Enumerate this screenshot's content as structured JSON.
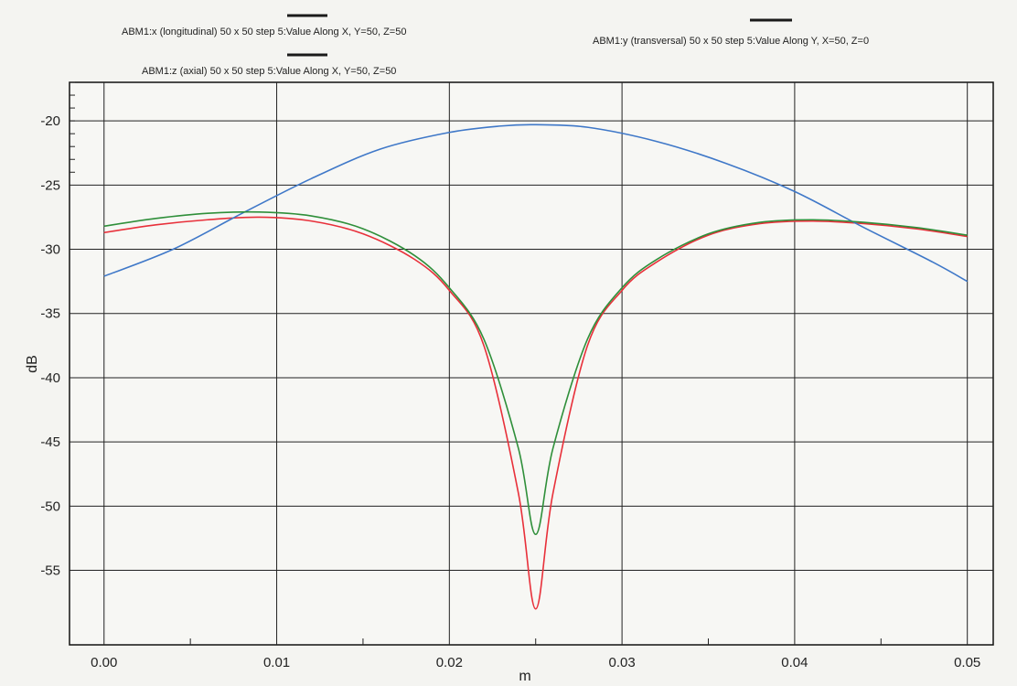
{
  "chart_data": {
    "type": "line",
    "xlabel": "m",
    "ylabel": "dB",
    "xlim": [
      -0.002,
      0.0515
    ],
    "ylim": [
      -60.8,
      -17
    ],
    "x_ticks": [
      0,
      0.01,
      0.02,
      0.03,
      0.04,
      0.05
    ],
    "x_tick_labels": [
      "0.00",
      "0.01",
      "0.02",
      "0.03",
      "0.04",
      "0.05"
    ],
    "y_ticks": [
      -20,
      -25,
      -30,
      -35,
      -40,
      -45,
      -50,
      -55
    ],
    "y_tick_labels": [
      "-20",
      "-25",
      "-30",
      "-35",
      "-40",
      "-45",
      "-50",
      "-55"
    ],
    "grid": true,
    "legend_position": "top",
    "series": [
      {
        "name": "ABM1:x (longitudinal) 50 x 50 step 5:Value Along X, Y=50, Z=50",
        "color": "#e8303a",
        "x": [
          0,
          0.003,
          0.006,
          0.009,
          0.012,
          0.015,
          0.018,
          0.02,
          0.022,
          0.024,
          0.025,
          0.026,
          0.028,
          0.03,
          0.032,
          0.035,
          0.038,
          0.041,
          0.044,
          0.047,
          0.05
        ],
        "y": [
          -28.7,
          -28.1,
          -27.7,
          -27.5,
          -27.8,
          -28.8,
          -30.8,
          -33.2,
          -37.5,
          -49.0,
          -58.0,
          -49.0,
          -37.5,
          -33.2,
          -31.0,
          -28.9,
          -28.0,
          -27.8,
          -28.0,
          -28.4,
          -29.0
        ]
      },
      {
        "name": "ABM1:y (transversal) 50 x 50 step 5:Value Along Y, X=50, Z=0",
        "color": "#3f78c8",
        "x": [
          0,
          0.004,
          0.008,
          0.012,
          0.016,
          0.02,
          0.023,
          0.025,
          0.028,
          0.032,
          0.036,
          0.04,
          0.044,
          0.048,
          0.05
        ],
        "y": [
          -32.1,
          -30.0,
          -27.2,
          -24.5,
          -22.2,
          -20.9,
          -20.4,
          -20.3,
          -20.5,
          -21.6,
          -23.3,
          -25.5,
          -28.3,
          -31.0,
          -32.5
        ]
      },
      {
        "name": "ABM1:z (axial) 50 x 50 step 5:Value Along X, Y=50, Z=50",
        "color": "#2f8f3a",
        "x": [
          0,
          0.003,
          0.006,
          0.009,
          0.012,
          0.015,
          0.018,
          0.02,
          0.022,
          0.024,
          0.025,
          0.026,
          0.028,
          0.03,
          0.032,
          0.035,
          0.038,
          0.041,
          0.044,
          0.047,
          0.05
        ],
        "y": [
          -28.2,
          -27.6,
          -27.2,
          -27.1,
          -27.4,
          -28.4,
          -30.5,
          -33.0,
          -37.0,
          -45.5,
          -52.2,
          -45.5,
          -37.0,
          -33.0,
          -30.8,
          -28.8,
          -27.9,
          -27.7,
          -27.9,
          -28.3,
          -28.9
        ]
      }
    ]
  }
}
